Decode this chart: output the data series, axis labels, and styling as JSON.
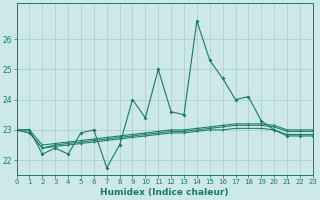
{
  "xlabel": "Humidex (Indice chaleur)",
  "bg_color": "#cce8e8",
  "grid_color": "#aacccc",
  "line_color": "#1a7a6a",
  "xlim": [
    0,
    23
  ],
  "ylim": [
    21.5,
    27.2
  ],
  "yticks": [
    22,
    23,
    24,
    25,
    26
  ],
  "xticks": [
    0,
    1,
    2,
    3,
    4,
    5,
    6,
    7,
    8,
    9,
    10,
    11,
    12,
    13,
    14,
    15,
    16,
    17,
    18,
    19,
    20,
    21,
    22,
    23
  ],
  "series": [
    [
      23.0,
      23.0,
      22.2,
      22.4,
      22.2,
      22.9,
      23.0,
      21.75,
      22.5,
      24.0,
      23.4,
      25.0,
      23.6,
      23.5,
      26.6,
      25.3,
      24.7,
      24.0,
      24.1,
      23.3,
      23.0,
      22.8,
      22.8,
      22.8
    ],
    [
      23.0,
      23.0,
      22.5,
      22.55,
      22.6,
      22.65,
      22.7,
      22.75,
      22.8,
      22.85,
      22.9,
      22.95,
      23.0,
      23.0,
      23.05,
      23.1,
      23.15,
      23.2,
      23.2,
      23.2,
      23.15,
      23.0,
      23.0,
      23.0
    ],
    [
      23.0,
      22.9,
      22.4,
      22.5,
      22.55,
      22.6,
      22.65,
      22.7,
      22.75,
      22.8,
      22.85,
      22.9,
      22.95,
      22.95,
      23.0,
      23.05,
      23.1,
      23.15,
      23.15,
      23.15,
      23.1,
      22.95,
      22.95,
      22.95
    ],
    [
      23.0,
      22.9,
      22.4,
      22.45,
      22.5,
      22.55,
      22.6,
      22.65,
      22.7,
      22.75,
      22.8,
      22.85,
      22.9,
      22.9,
      22.95,
      23.0,
      23.0,
      23.05,
      23.05,
      23.05,
      23.0,
      22.85,
      22.85,
      22.85
    ]
  ]
}
